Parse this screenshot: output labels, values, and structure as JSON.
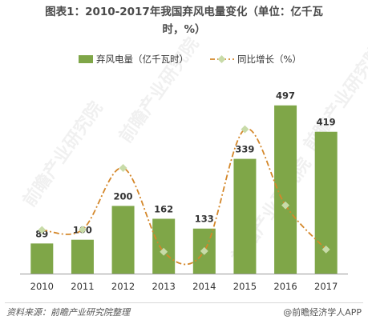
{
  "title_line1": "图表1：2010-2017年我国弃风电量变化（单位：亿千瓦",
  "title_line2": "时，%）",
  "source": "资料来源：前瞻产业研究院整理",
  "brand": "@前瞻经济学人APP",
  "watermark": "前瞻产业研究院",
  "colors": {
    "bar": "#7fa648",
    "line": "#d4872a",
    "marker": "#c8dba8"
  },
  "chart_data": {
    "type": "bar",
    "categories": [
      "2010",
      "2011",
      "2012",
      "2013",
      "2014",
      "2015",
      "2016",
      "2017"
    ],
    "series": [
      {
        "name": "弃风电量（亿千瓦时）",
        "type": "bar",
        "values": [
          89,
          100,
          200,
          162,
          133,
          339,
          497,
          419
        ],
        "axis": "left"
      },
      {
        "name": "同比增长（%）",
        "type": "line",
        "values": [
          12,
          12.4,
          100,
          -19,
          -18,
          155,
          47,
          -15.7
        ],
        "axis": "right"
      }
    ],
    "ylim": [
      0,
      520
    ],
    "y2lim": [
      -50,
      200
    ],
    "data_labels": [
      "89",
      "100",
      "200",
      "162",
      "133",
      "339",
      "497",
      "419"
    ],
    "legend_position": "top",
    "grid": false
  }
}
